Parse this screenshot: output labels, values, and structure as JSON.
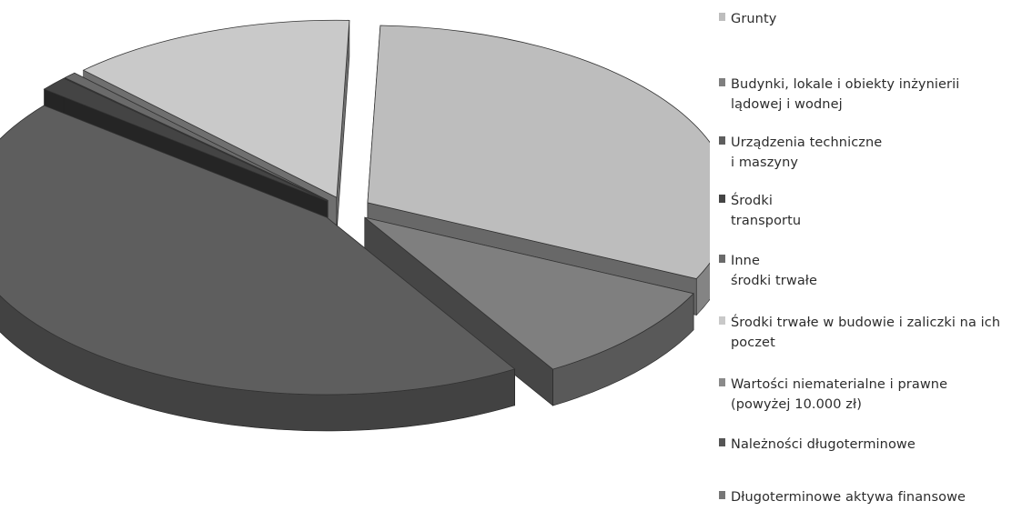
{
  "chart_data": {
    "type": "pie",
    "style": "3d-exploded",
    "title": "",
    "legend_position": "right",
    "series": [
      {
        "name": "Grunty",
        "value": 31.5,
        "color": "#bdbdbd"
      },
      {
        "name": "Budynki, lokale i obiekty inżynierii\nlądowej i wodnej",
        "value": 9.3,
        "color": "#7f7f7f"
      },
      {
        "name": "Urządzenia techniczne\ni maszyny",
        "value": 44.5,
        "color": "#5e5e5e"
      },
      {
        "name": "Środki\ntransportu",
        "value": 1.3,
        "color": "#444444"
      },
      {
        "name": "Inne\nśrodki trwałe",
        "value": 0.6,
        "color": "#6a6a6a"
      },
      {
        "name": "Środki trwałe w budowie i zaliczki na ich\npoczet",
        "value": 12.8,
        "color": "#c9c9c9"
      },
      {
        "name": "Wartości niematerialne i prawne\n(powyżej 10.000 zł)",
        "value": 0,
        "color": "#8a8a8a"
      },
      {
        "name": "Należności długoterminowe",
        "value": 0,
        "color": "#555555"
      },
      {
        "name": "Długoterminowe aktywa finansowe",
        "value": 0,
        "color": "#777777"
      }
    ]
  }
}
